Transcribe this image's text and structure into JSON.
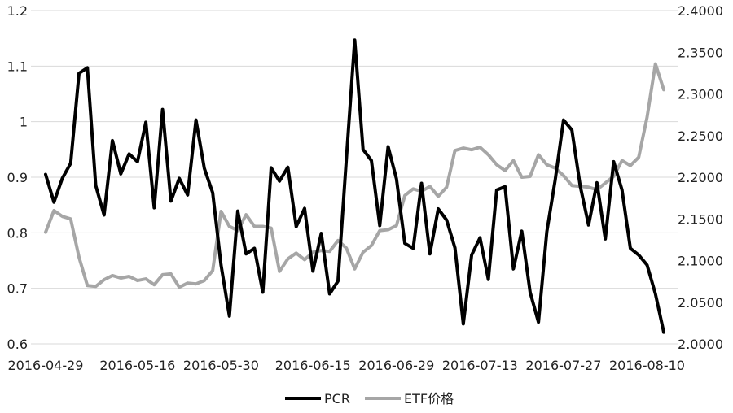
{
  "chart_data": {
    "type": "line",
    "title": "",
    "xlabel": "",
    "ylabel": "",
    "y2label": "",
    "x_tick_labels": [
      "2016-04-29",
      "2016-05-16",
      "2016-05-30",
      "2016-06-15",
      "2016-06-29",
      "2016-07-13",
      "2016-07-27",
      "2016-08-10"
    ],
    "x_tick_indices": [
      0,
      11,
      21,
      32,
      42,
      52,
      62,
      72
    ],
    "y_left": {
      "min": 0.6,
      "max": 1.2,
      "step": 0.1,
      "ticks": [
        "0.6",
        "0.7",
        "0.8",
        "0.9",
        "1",
        "1.1",
        "1.2"
      ]
    },
    "y_right": {
      "min": 2.0,
      "max": 2.4,
      "step": 0.05,
      "ticks": [
        "2.0000",
        "2.0500",
        "2.1000",
        "2.1500",
        "2.2000",
        "2.2500",
        "2.3000",
        "2.3500",
        "2.4000"
      ]
    },
    "grid": "horizontal",
    "legend_position": "bottom",
    "series": [
      {
        "name": "PCR",
        "axis": "left",
        "color": "#000000",
        "values": [
          0.905,
          0.855,
          0.898,
          0.925,
          1.087,
          1.097,
          0.885,
          0.832,
          0.966,
          0.906,
          0.942,
          0.928,
          0.999,
          0.845,
          1.022,
          0.857,
          0.898,
          0.868,
          1.003,
          0.916,
          0.872,
          0.742,
          0.65,
          0.839,
          0.762,
          0.772,
          0.693,
          0.917,
          0.893,
          0.918,
          0.811,
          0.844,
          0.731,
          0.799,
          0.69,
          0.713,
          0.932,
          1.147,
          0.95,
          0.93,
          0.813,
          0.955,
          0.897,
          0.781,
          0.772,
          0.889,
          0.762,
          0.843,
          0.823,
          0.773,
          0.636,
          0.76,
          0.791,
          0.716,
          0.877,
          0.883,
          0.735,
          0.803,
          0.693,
          0.639,
          0.802,
          0.895,
          1.003,
          0.985,
          0.884,
          0.814,
          0.89,
          0.789,
          0.928,
          0.877,
          0.772,
          0.76,
          0.742,
          0.69,
          0.621
        ]
      },
      {
        "name": "ETF价格",
        "axis": "right",
        "color": "#a6a6a6",
        "values": [
          2.134,
          2.16,
          2.153,
          2.15,
          2.104,
          2.07,
          2.069,
          2.077,
          2.082,
          2.079,
          2.081,
          2.076,
          2.078,
          2.071,
          2.083,
          2.084,
          2.068,
          2.073,
          2.072,
          2.076,
          2.088,
          2.159,
          2.141,
          2.136,
          2.155,
          2.141,
          2.141,
          2.139,
          2.087,
          2.102,
          2.109,
          2.101,
          2.11,
          2.112,
          2.111,
          2.124,
          2.115,
          2.09,
          2.11,
          2.118,
          2.136,
          2.137,
          2.142,
          2.178,
          2.186,
          2.183,
          2.189,
          2.177,
          2.188,
          2.232,
          2.235,
          2.233,
          2.236,
          2.227,
          2.215,
          2.208,
          2.22,
          2.2,
          2.201,
          2.227,
          2.215,
          2.211,
          2.202,
          2.19,
          2.189,
          2.188,
          2.185,
          2.193,
          2.201,
          2.22,
          2.214,
          2.224,
          2.272,
          2.336,
          2.305
        ]
      }
    ]
  }
}
